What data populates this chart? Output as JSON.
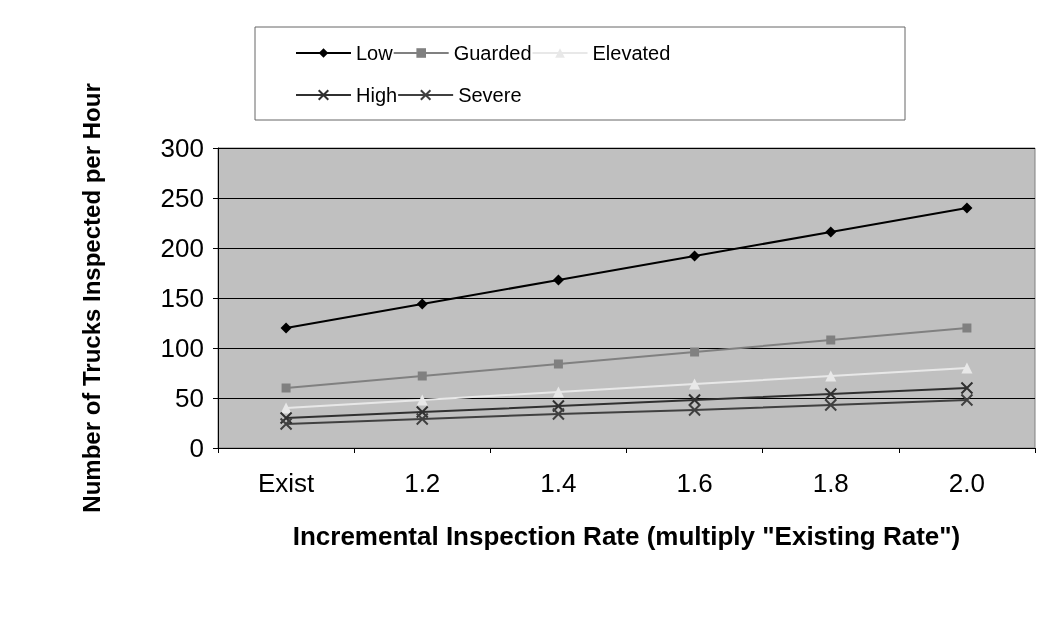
{
  "chart_data": {
    "type": "line",
    "xlabel": "Incremental Inspection Rate (multiply \"Existing Rate\")",
    "ylabel": "Number of Trucks Inspected per Hour",
    "categories": [
      "Exist",
      "1.2",
      "1.4",
      "1.6",
      "1.8",
      "2.0"
    ],
    "series": [
      {
        "name": "Low",
        "color": "#000000",
        "marker": "diamond",
        "values": [
          120,
          144,
          168,
          192,
          216,
          240
        ]
      },
      {
        "name": "Guarded",
        "color": "#808080",
        "marker": "square",
        "values": [
          60,
          72,
          84,
          96,
          108,
          120
        ]
      },
      {
        "name": "Elevated",
        "color": "#e8e8e8",
        "marker": "triangle",
        "values": [
          40,
          48,
          56,
          64,
          72,
          80
        ]
      },
      {
        "name": "High",
        "color": "#303030",
        "marker": "cross",
        "values": [
          30,
          36,
          42,
          48,
          54,
          60
        ]
      },
      {
        "name": "Severe",
        "color": "#404040",
        "marker": "cross",
        "values": [
          24,
          29,
          34,
          38,
          43,
          48
        ]
      }
    ],
    "ylim": [
      0,
      300
    ],
    "yticks": [
      0,
      50,
      100,
      150,
      200,
      250,
      300
    ],
    "grid": "y",
    "legend": "top",
    "line_style": "solid"
  }
}
